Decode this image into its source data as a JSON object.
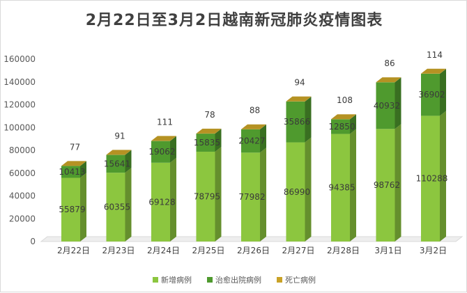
{
  "chart_data": {
    "type": "bar",
    "stacked": true,
    "title": "2月22日至3月2日越南新冠肺炎疫情图表",
    "categories": [
      "2月22日",
      "2月23日",
      "2月24日",
      "2月25日",
      "2月26日",
      "2月27日",
      "2月28日",
      "3月1日",
      "3月2日"
    ],
    "series": [
      {
        "name": "新增病例",
        "color": "#8cc63f",
        "values": [
          55879,
          60355,
          69128,
          78795,
          77982,
          86990,
          94385,
          98762,
          110288
        ]
      },
      {
        "name": "治愈出院病例",
        "color": "#4f9a2e",
        "values": [
          10413,
          15641,
          19062,
          15835,
          20427,
          35866,
          12850,
          40932,
          36902
        ]
      },
      {
        "name": "死亡病例",
        "color": "#c9a227",
        "values": [
          77,
          91,
          111,
          78,
          88,
          94,
          108,
          86,
          114
        ]
      }
    ],
    "yticks": [
      "0",
      "20000",
      "40000",
      "60000",
      "80000",
      "100000",
      "120000",
      "140000",
      "160000"
    ],
    "ylim": [
      0,
      160000
    ],
    "legend_position": "bottom",
    "grid": false
  }
}
